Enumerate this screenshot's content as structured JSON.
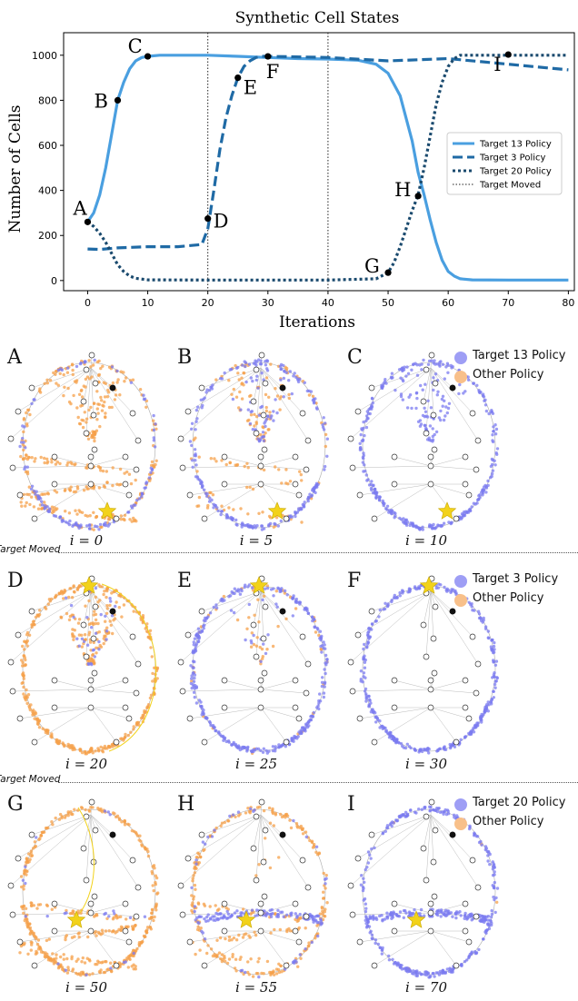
{
  "chart_data": {
    "type": "line",
    "title": "Synthetic Cell States",
    "xlabel": "Iterations",
    "ylabel": "Number of Cells",
    "xlim": [
      -4,
      81
    ],
    "ylim": [
      -45,
      1100
    ],
    "xticks": [
      0,
      10,
      20,
      30,
      40,
      50,
      60,
      70,
      80
    ],
    "yticks": [
      0,
      200,
      400,
      600,
      800,
      1000
    ],
    "legend_position": "right",
    "grid": false,
    "series": [
      {
        "name": "Target 13 Policy",
        "style": "solid",
        "color": "#4a9fe0",
        "x": [
          0,
          1,
          2,
          3,
          4,
          5,
          6,
          7,
          8,
          9,
          10,
          12,
          15,
          20,
          25,
          30,
          35,
          40,
          45,
          48,
          50,
          52,
          54,
          55,
          56,
          57,
          58,
          59,
          60,
          61,
          62,
          64,
          70,
          80
        ],
        "y": [
          260,
          300,
          380,
          500,
          650,
          800,
          880,
          940,
          975,
          990,
          995,
          1000,
          1000,
          1000,
          995,
          990,
          985,
          983,
          978,
          960,
          920,
          820,
          620,
          480,
          380,
          270,
          170,
          90,
          40,
          20,
          8,
          3,
          2,
          2
        ]
      },
      {
        "name": "Target 3 Policy",
        "style": "dashed",
        "color": "#1f6aa5",
        "x": [
          0,
          2,
          5,
          10,
          15,
          19,
          20,
          21,
          22,
          23,
          24,
          25,
          26,
          27,
          28,
          29,
          30,
          40,
          50,
          55,
          60,
          70,
          80
        ],
        "y": [
          140,
          138,
          145,
          150,
          150,
          160,
          230,
          400,
          580,
          720,
          820,
          900,
          950,
          975,
          990,
          995,
          995,
          990,
          975,
          980,
          985,
          960,
          935
        ]
      },
      {
        "name": "Target 20 Policy",
        "style": "dotted",
        "color": "#1a4a6e",
        "x": [
          0,
          1,
          2,
          3,
          4,
          5,
          6,
          7,
          8,
          10,
          20,
          30,
          40,
          48,
          50,
          51,
          52,
          53,
          54,
          55,
          56,
          57,
          58,
          59,
          60,
          61,
          62,
          70,
          80
        ],
        "y": [
          260,
          240,
          210,
          170,
          120,
          70,
          40,
          20,
          10,
          3,
          2,
          2,
          2,
          8,
          35,
          80,
          150,
          230,
          310,
          380,
          500,
          640,
          780,
          880,
          950,
          985,
          1000,
          1000,
          1000
        ]
      }
    ],
    "target_moved": {
      "name": "Target Moved",
      "style": "dotted",
      "x": [
        20,
        40
      ]
    },
    "annotations": [
      {
        "label": "A",
        "x": 0,
        "y": 260
      },
      {
        "label": "B",
        "x": 5,
        "y": 800
      },
      {
        "label": "C",
        "x": 10,
        "y": 995
      },
      {
        "label": "D",
        "x": 20,
        "y": 275
      },
      {
        "label": "E",
        "x": 25,
        "y": 900
      },
      {
        "label": "F",
        "x": 30,
        "y": 995
      },
      {
        "label": "G",
        "x": 50,
        "y": 35
      },
      {
        "label": "H",
        "x": 55,
        "y": 375
      },
      {
        "label": "I",
        "x": 70,
        "y": 1003
      }
    ]
  },
  "panels": [
    {
      "letter": "A",
      "iteration": "i = 0"
    },
    {
      "letter": "B",
      "iteration": "i = 5"
    },
    {
      "letter": "C",
      "iteration": "i = 10"
    },
    {
      "letter": "D",
      "iteration": "i = 20"
    },
    {
      "letter": "E",
      "iteration": "i = 25"
    },
    {
      "letter": "F",
      "iteration": "i = 30"
    },
    {
      "letter": "G",
      "iteration": "i = 50"
    },
    {
      "letter": "H",
      "iteration": "i = 55"
    },
    {
      "letter": "I",
      "iteration": "i = 70"
    }
  ],
  "row_legends": [
    {
      "target": "Target 13 Policy",
      "other": "Other Policy"
    },
    {
      "target": "Target 3 Policy",
      "other": "Other Policy"
    },
    {
      "target": "Target 20 Policy",
      "other": "Other Policy"
    }
  ],
  "separator_label": "Target Moved",
  "colors": {
    "target_cells": "#7b7bf0",
    "other_cells": "#f5a04a",
    "star": "#f2d21a"
  }
}
